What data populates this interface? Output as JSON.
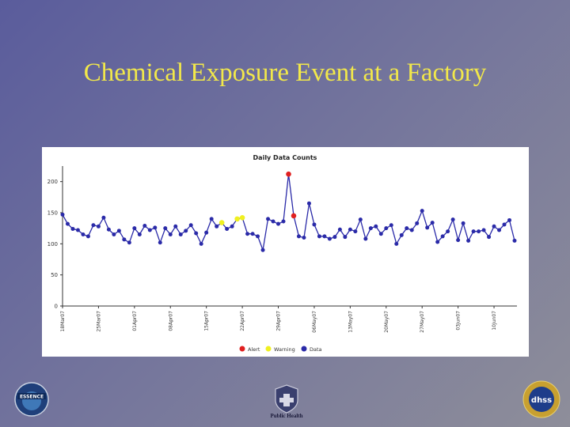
{
  "slide": {
    "title": "Chemical Exposure Event at a Factory"
  },
  "colors": {
    "title": "#f2e84a",
    "alert": "#e02020",
    "warning": "#f0f020",
    "data": "#2a2aa8"
  },
  "logos": {
    "left": "ESSENCE",
    "center": "Public Health",
    "right": "dhss"
  },
  "chart_data": {
    "type": "line",
    "title": "Daily Data Counts",
    "xlabel": "",
    "ylabel": "",
    "ylim": [
      0,
      225
    ],
    "yticks": [
      0,
      50,
      100,
      150,
      200
    ],
    "grid": false,
    "legend_position": "bottom-center",
    "x_tick_labels": [
      "18Mar07",
      "25Mar07",
      "01Apr07",
      "08Apr07",
      "15Apr07",
      "22Apr07",
      "29Apr07",
      "06May07",
      "13May07",
      "20May07",
      "27May07",
      "03Jun07",
      "10Jun07"
    ],
    "x_tick_index": [
      0,
      7,
      14,
      21,
      28,
      35,
      42,
      49,
      56,
      63,
      70,
      77,
      84
    ],
    "legend": [
      {
        "label": "Alert",
        "color": "#e02020"
      },
      {
        "label": "Warning",
        "color": "#f0f020"
      },
      {
        "label": "Data",
        "color": "#2a2aa8"
      }
    ],
    "values": [
      147,
      132,
      124,
      122,
      115,
      112,
      130,
      128,
      142,
      123,
      115,
      121,
      107,
      102,
      125,
      115,
      129,
      122,
      126,
      102,
      125,
      115,
      128,
      115,
      121,
      130,
      117,
      100,
      118,
      140,
      128,
      134,
      124,
      128,
      140,
      142,
      116,
      116,
      112,
      90,
      140,
      136,
      132,
      136,
      212,
      145,
      112,
      110,
      165,
      131,
      112,
      112,
      108,
      111,
      123,
      111,
      123,
      120,
      139,
      108,
      125,
      128,
      116,
      125,
      130,
      100,
      114,
      125,
      122,
      133,
      153,
      126,
      134,
      103,
      112,
      120,
      139,
      106,
      133,
      105,
      120,
      120,
      122,
      111,
      128,
      122,
      131,
      138,
      105
    ],
    "status": [
      "data",
      "data",
      "data",
      "data",
      "data",
      "data",
      "data",
      "data",
      "data",
      "data",
      "data",
      "data",
      "data",
      "data",
      "data",
      "data",
      "data",
      "data",
      "data",
      "data",
      "data",
      "data",
      "data",
      "data",
      "data",
      "data",
      "data",
      "data",
      "data",
      "data",
      "data",
      "warning",
      "data",
      "data",
      "warning",
      "warning",
      "data",
      "data",
      "data",
      "data",
      "data",
      "data",
      "data",
      "data",
      "alert",
      "alert",
      "data",
      "data",
      "data",
      "data",
      "data",
      "data",
      "data",
      "data",
      "data",
      "data",
      "data",
      "data",
      "data",
      "data",
      "data",
      "data",
      "data",
      "data",
      "data",
      "data",
      "data",
      "data",
      "data",
      "data",
      "data",
      "data",
      "data",
      "data",
      "data",
      "data",
      "data",
      "data",
      "data",
      "data",
      "data",
      "data",
      "data",
      "data",
      "data",
      "data",
      "data",
      "data",
      "data"
    ]
  }
}
